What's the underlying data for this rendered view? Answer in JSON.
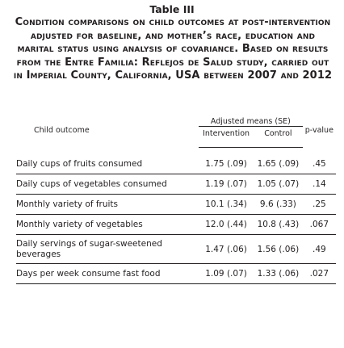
{
  "title": "Table III",
  "caption": "Condition comparisons on child outcomes at post-intervention adjusted for baseline, and mother’s race, education and marital status using analysis of covariance. Based on results from the Entre Familia: Reflejos de Salud study, carried out in Imperial County, California, USA between 2007 and 2012",
  "table": {
    "header": {
      "outcome": "Child outcome",
      "group": "Adjusted means (SE)",
      "intervention": "Intervention",
      "control": "Control",
      "p": "p-value"
    },
    "rows": [
      [
        "Daily cups of fruits consumed",
        "1.75 (.09)",
        "1.65 (.09)",
        ".45"
      ],
      [
        "Daily cups of vegetables consumed",
        "1.19 (.07)",
        "1.05 (.07)",
        ".14"
      ],
      [
        "Monthly variety of fruits",
        "10.1 (.34)",
        "9.6 (.33)",
        ".25"
      ],
      [
        "Monthly variety of vegetables",
        "12.0 (.44)",
        "10.8 (.43)",
        ".067"
      ],
      [
        "Daily servings of sugar-sweetened beverages",
        "1.47 (.06)",
        "1.56 (.06)",
        ".49"
      ],
      [
        "Days per week consume fast food",
        "1.09 (.07)",
        "1.33 (.06)",
        ".027"
      ]
    ]
  }
}
